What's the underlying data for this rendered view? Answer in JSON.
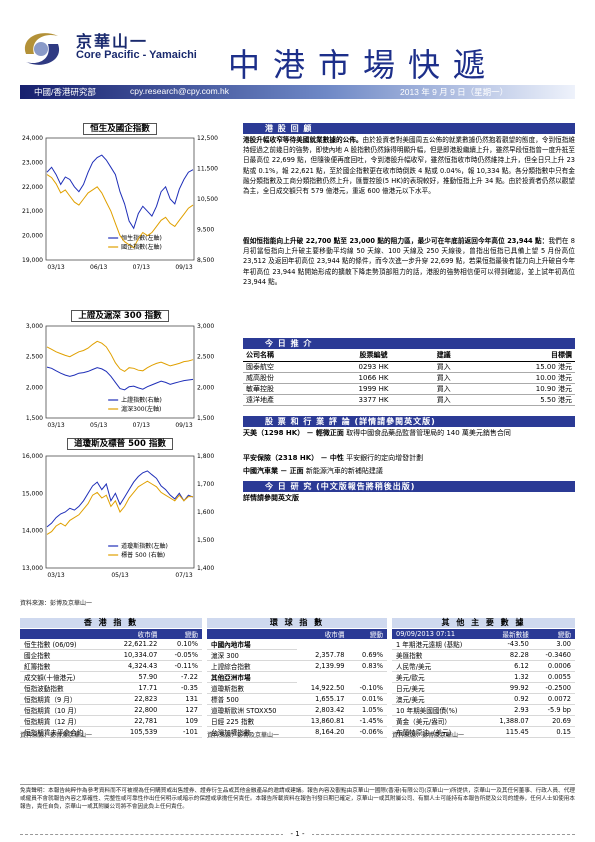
{
  "header": {
    "logo_cn": "京華山一",
    "logo_en": "Core Pacific - Yamaichi",
    "title": "中港市場快遞",
    "dept": "中國/香港研究部",
    "email": "cpy.research@cpy.com.hk",
    "date": "2013 年 9 月 9 日（星期一）"
  },
  "charts_text": {
    "source": "資料來源：彭博及京華山一"
  },
  "chart_data": [
    {
      "type": "line",
      "title": "恒生及國企指數",
      "x_ticks": [
        "03/13",
        "06/13",
        "07/13",
        "09/13"
      ],
      "y_left": [
        19000,
        20000,
        21000,
        22000,
        23000,
        24000
      ],
      "y_right": [
        8500,
        9500,
        10500,
        11500,
        12500
      ],
      "y_left_labels": [
        "19,000",
        "20,000",
        "21,000",
        "22,000",
        "23,000",
        "24,000"
      ],
      "y_right_labels": [
        "8,500",
        "9,500",
        "10,500",
        "11,500",
        "12,500"
      ],
      "series": [
        {
          "name": "恒生指數(左軸)",
          "axis": "left",
          "color": "#1f2fb8",
          "values": [
            22600,
            22800,
            22500,
            22100,
            22400,
            22300,
            22000,
            21800,
            22100,
            22600,
            23000,
            23200,
            23300,
            23100,
            22800,
            22500,
            21800,
            21300,
            20600,
            20300,
            20900,
            21200,
            21000,
            20800,
            21200,
            21800,
            22000,
            21500,
            21300,
            21900,
            22300,
            22600,
            22700
          ]
        },
        {
          "name": "國企指數(左軸)",
          "axis": "right",
          "color": "#e0a000",
          "values": [
            11300,
            11200,
            11000,
            10700,
            10800,
            10600,
            10400,
            10300,
            10500,
            10700,
            10800,
            10900,
            10700,
            10400,
            10100,
            9700,
            9300,
            9100,
            9000,
            8900,
            9200,
            9400,
            9300,
            9400,
            9600,
            9800,
            9900,
            9700,
            9600,
            9800,
            10000,
            10200,
            10300
          ]
        }
      ]
    },
    {
      "type": "line",
      "title": "上證及滬深 300 指數",
      "x_ticks": [
        "03/13",
        "05/13",
        "07/13",
        "09/13"
      ],
      "y_left": [
        1500,
        2000,
        2500,
        3000
      ],
      "y_right": [
        1500,
        2000,
        2500,
        3000
      ],
      "y_left_labels": [
        "1,500",
        "2,000",
        "2,500",
        "3,000"
      ],
      "y_right_labels": [
        "1,500",
        "2,000",
        "2,500",
        "3,000"
      ],
      "series": [
        {
          "name": "上證指數(右軸)",
          "axis": "left",
          "color": "#1f2fb8",
          "values": [
            2330,
            2310,
            2270,
            2230,
            2200,
            2180,
            2200,
            2230,
            2240,
            2260,
            2290,
            2320,
            2300,
            2260,
            2180,
            2080,
            1980,
            1960,
            2010,
            2020,
            1990,
            1970,
            2010,
            2040,
            2070,
            2100,
            2080,
            2050,
            2070,
            2090,
            2110,
            2120,
            2130
          ]
        },
        {
          "name": "滬深300(左軸)",
          "axis": "left",
          "color": "#e0a000",
          "values": [
            2660,
            2620,
            2580,
            2550,
            2520,
            2500,
            2540,
            2580,
            2600,
            2640,
            2700,
            2750,
            2720,
            2660,
            2540,
            2400,
            2300,
            2260,
            2320,
            2310,
            2280,
            2270,
            2320,
            2360,
            2390,
            2410,
            2380,
            2350,
            2370,
            2390,
            2420,
            2430,
            2450
          ]
        }
      ]
    },
    {
      "type": "line",
      "title": "道瓊斯及標普 500 指數",
      "x_ticks": [
        "03/13",
        "05/13",
        "07/13"
      ],
      "y_left": [
        13000,
        14000,
        15000,
        16000
      ],
      "y_right": [
        1400,
        1500,
        1600,
        1700,
        1800
      ],
      "y_left_labels": [
        "13,000",
        "14,000",
        "15,000",
        "16,000"
      ],
      "y_right_labels": [
        "1,400",
        "1,500",
        "1,600",
        "1,700",
        "1,800"
      ],
      "series": [
        {
          "name": "道瓊斯指數(左軸)",
          "axis": "left",
          "color": "#1f2fb8",
          "values": [
            14100,
            14200,
            14350,
            14450,
            14500,
            14600,
            14550,
            14650,
            14800,
            15000,
            15200,
            15300,
            15100,
            15250,
            14800,
            15000,
            14700,
            14900,
            15100,
            15300,
            15450,
            15550,
            15600,
            15500,
            15400,
            15200,
            15100,
            14950,
            14850,
            15000,
            14800,
            14950,
            14900
          ]
        },
        {
          "name": "標普 500 (右軸)",
          "axis": "right",
          "color": "#e0a000",
          "values": [
            1520,
            1530,
            1550,
            1560,
            1550,
            1570,
            1580,
            1590,
            1610,
            1630,
            1660,
            1670,
            1650,
            1660,
            1620,
            1640,
            1600,
            1620,
            1650,
            1670,
            1690,
            1700,
            1710,
            1700,
            1690,
            1670,
            1660,
            1650,
            1640,
            1660,
            1640,
            1655,
            1655
          ]
        }
      ]
    }
  ],
  "review": {
    "heading": "港 股 回 顧",
    "p1_lead": "港股升幅收窄等待美國就業數據的公佈。",
    "p1_body": "由於投資者對美國周五公佈的就業數據仍然抱着觀望的態度，令到恒指維持經過之前幾日的強勢，即使內地 A 股指數仍然錄得明顯升幅，但是即港股繼續上升，雖然早段恒指曾一度升抵至日最高位 22,699 點，但隨後便再度回吐，令到港股升幅收窄，雖然恒指收市時仍然維持上升，但全日只上升 23 點或 0.1%，報 22,621 點，至於國企指數更在收市時倒跌 4 點或 0.04%，報 10,334 點。各分類指數中只有金融分類指數及工商分類指數仍然上升，匯豐控股(5 HK)的表現較好，推動恒指上升 34 點。由於投資者仍然以觀望為主，全日成交額只有 579 億港元，重返 600 億港元以下水平。",
    "p2_lead": "假如恒指能向上升破 22,700 點至 23,000 點的阻力區，最少可在年底前返回今年高位 23,944 點：",
    "p2_body": "我們在 8 月初當恒指向上升破主要移動平均線 50 天線、100 天線及 250 天線後，曾指出恒指已具備上望 5 月份高位 23,512 及返回年初高位 23,944 點的條件，而今次進一步升穿 22,699 點，若果恒指最後有能力向上升破自今年年初高位 23,944 點開始形成的擴散下降走勢頂部阻力的話，港股的強勢相信便可以得到確認，並上試年初高位 23,944 點。"
  },
  "recommend": {
    "heading": "今 日 推 介",
    "headers": [
      "公司名稱",
      "股票編號",
      "建議",
      "目標價"
    ],
    "rows": [
      [
        "國泰航空",
        "0293 HK",
        "買入",
        "15.00 港元"
      ],
      [
        "威高股份",
        "1066 HK",
        "買入",
        "10.00 港元"
      ],
      [
        "敏華控股",
        "1999 HK",
        "買入",
        "10.90 港元"
      ],
      [
        "遠洋地產",
        "3377 HK",
        "買入",
        "5.50 港元"
      ]
    ]
  },
  "stock_comments": {
    "heading": "股 票 和 行 業 評 論 (詳情請參閱英文版)",
    "item1_name": "天美（1298 HK）",
    "item1_tag": "－ 輕微正面",
    "item1_text": "取得中國食品藥品監督管理局的 140 萬美元銷售合同",
    "item2_name": "平安保險（2318 HK）",
    "item2_tag": "－ 中性",
    "item2_text": "平安銀行的定向增發計劃",
    "item3_name": "中國汽車業",
    "item3_tag": "－ 正面",
    "item3_text": "新能源汽車的新補貼建議"
  },
  "daily_research": {
    "heading": "今 日 研 究 (中文版報告將稍後出版)",
    "text": "詳情請參閱英文版"
  },
  "hk_indices": {
    "heading": "香 港 指 數",
    "headers": [
      "",
      "收市價",
      "變動"
    ],
    "rows": [
      [
        "恒生指數 (06/09)",
        "22,621.22",
        "0.10%"
      ],
      [
        "國企指數",
        "10,334.07",
        "-0.05%"
      ],
      [
        "紅籌指數",
        "4,324.43",
        "-0.11%"
      ],
      [
        "成交額(十億港元)",
        "57.90",
        "-7.22"
      ],
      [
        "恒指波動指數",
        "17.71",
        "-0.35"
      ],
      [
        "恒指期貨（9 月）",
        "22,823",
        "131"
      ],
      [
        "恒指期貨（10 月）",
        "22,800",
        "127"
      ],
      [
        "恒指期貨（12 月）",
        "22,781",
        "109"
      ],
      [
        "恒指期貨未平倉合約",
        "105,539",
        "-101"
      ]
    ]
  },
  "world_indices": {
    "heading": "環 球 指 數",
    "headers": [
      "",
      "收市價",
      "變動"
    ],
    "rows": [
      {
        "name": "中國內地市場",
        "sub": true
      },
      {
        "name": "滬深 300",
        "v": "2,357.78",
        "c": "0.69%"
      },
      {
        "name": "上證綜合指數",
        "v": "2,139.99",
        "c": "0.83%"
      },
      {
        "name": "其他亞洲市場",
        "sub": true
      },
      {
        "name": "道瓊斯指數",
        "v": "14,922.50",
        "c": "-0.10%"
      },
      {
        "name": "標普 500",
        "v": "1,655.17",
        "c": "0.01%"
      },
      {
        "name": "道瓊斯歐洲 STOXX50",
        "v": "2,803.42",
        "c": "1.05%"
      },
      {
        "name": "日經 225 指數",
        "v": "13,860.81",
        "c": "-1.45%"
      },
      {
        "name": "台灣加權指數",
        "v": "8,164.20",
        "c": "-0.06%"
      }
    ]
  },
  "economic_data": {
    "heading": "其 他 主 要 數 據",
    "headers": [
      "09/09/2013 07:11",
      "最新數據",
      "變動"
    ],
    "rows": [
      [
        "1 年期港元遠期 (基點)",
        "-43.50",
        "3.00"
      ],
      [
        "美匯指數",
        "82.28",
        "-0.3460"
      ],
      [
        "人民幣/美元",
        "6.12",
        "0.0006"
      ],
      [
        "美元/歐元",
        "1.32",
        "0.0055"
      ],
      [
        "日元/美元",
        "99.92",
        "-0.2500"
      ],
      [
        "澳元/美元",
        "0.92",
        "0.0072"
      ],
      [
        "10 年期美國國債(%)",
        "2.93",
        "-5.9 bp"
      ],
      [
        "黃金（美元/盎司）",
        "1,388.07",
        "20.69"
      ],
      [
        "布蘭特原油（美元）",
        "115.45",
        "0.15"
      ]
    ]
  },
  "disclaimer": "免責聲明：本報告純粹作為參考資料而不可被視為任何購買或出售證券、證券衍生品或其他金融產品的邀請或建議。報告內容及觀點由京華山一國際(香港)有限公司(京華山一)所提供，京華山一及其任何董事、行政人員、代理或僱員不會就報告內容之準確性、完整性或可靠性作出任何明示或暗示的保證或承擔任何責任。本報告所載資料在報告刊發日期已確定，京華山一或其附屬公司、有關人士可能持有本報告所提及公司的證券，任何人士如使用本報告，責任自負，京華山一或其附屬公司將不會因此負上任何責任。",
  "page": "- 1 -"
}
